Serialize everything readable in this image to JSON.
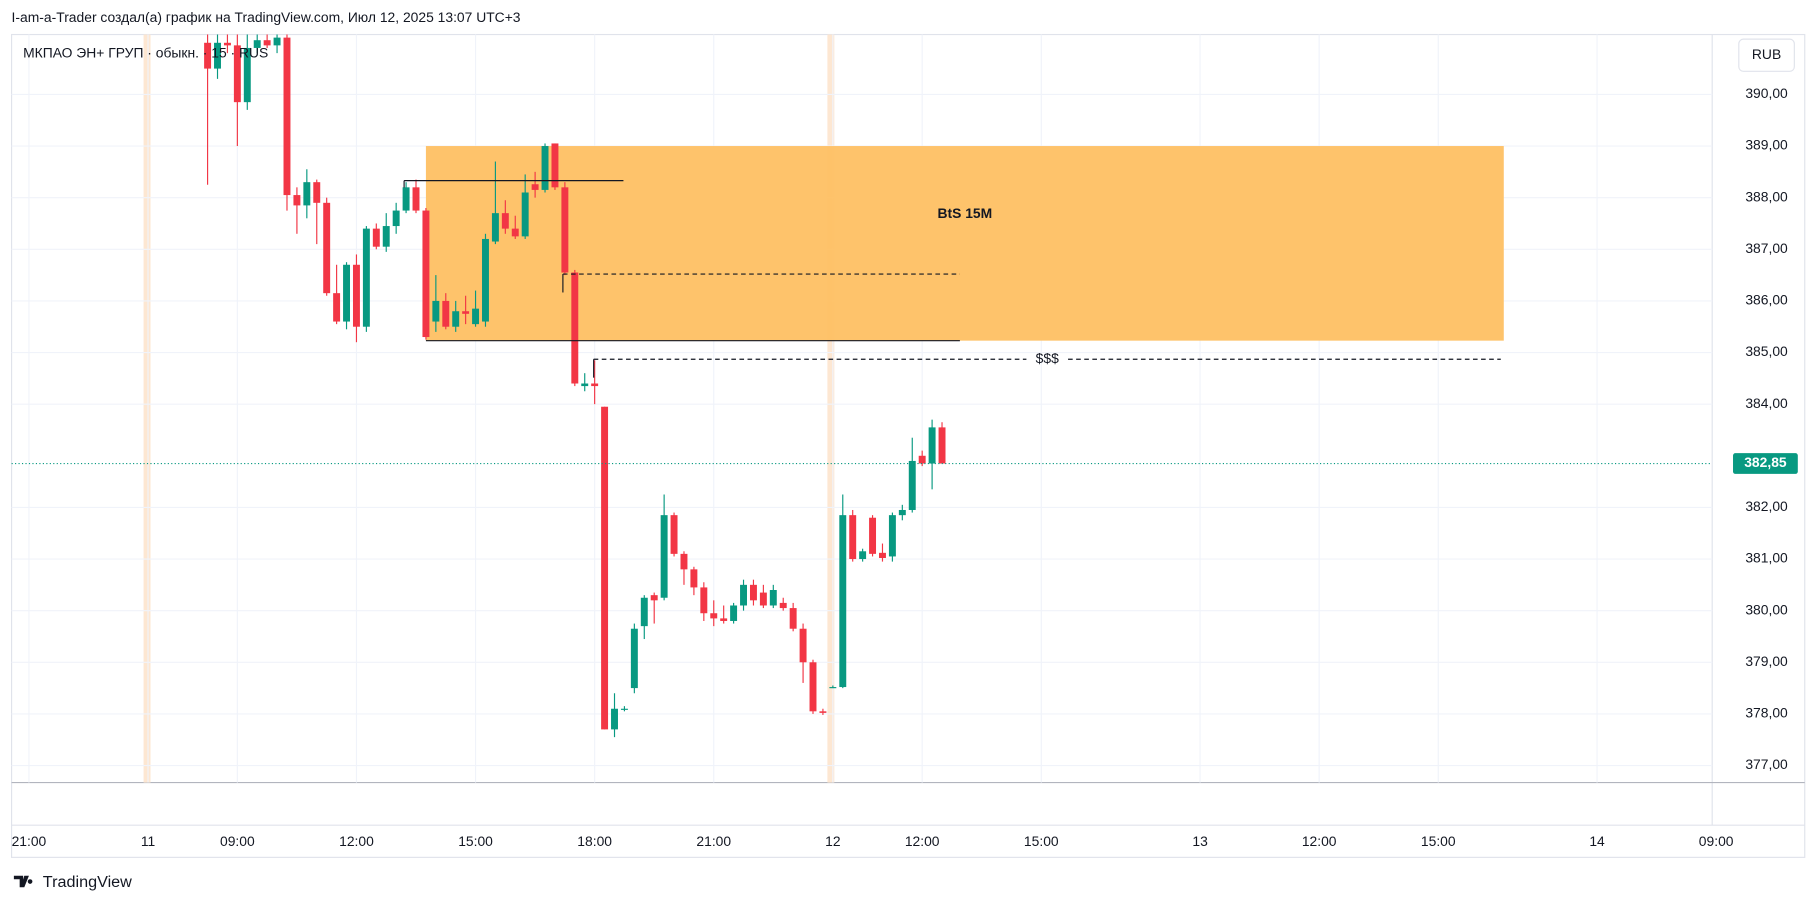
{
  "header": {
    "text": "I-am-a-Trader создал(а) график на TradingView.com, Июл 12, 2025 13:07 UTC+3"
  },
  "footer": {
    "brand": "TradingView"
  },
  "chart_data": {
    "type": "candlestick",
    "legend": "МКПАО ЭН+ ГРУП · обыкн. · 15 · RUS",
    "currency": "RUB",
    "up_color": "#089981",
    "down_color": "#f23645",
    "grid": true,
    "xlim": [
      -1.75,
      169.6
    ],
    "ylim": [
      376.67,
      391.16
    ],
    "xticks": [
      {
        "value": 0,
        "label": "21:00"
      },
      {
        "value": 12,
        "label": "11"
      },
      {
        "value": 21,
        "label": "09:00"
      },
      {
        "value": 33,
        "label": "12:00"
      },
      {
        "value": 45,
        "label": "15:00"
      },
      {
        "value": 57,
        "label": "18:00"
      },
      {
        "value": 69,
        "label": "21:00"
      },
      {
        "value": 81,
        "label": "12"
      },
      {
        "value": 90,
        "label": "12:00"
      },
      {
        "value": 102,
        "label": "15:00"
      },
      {
        "value": 118,
        "label": "13"
      },
      {
        "value": 130,
        "label": "12:00"
      },
      {
        "value": 142,
        "label": "15:00"
      },
      {
        "value": 158,
        "label": "14"
      },
      {
        "value": 170,
        "label": "09:00"
      }
    ],
    "yticks": [
      {
        "value": 377,
        "label": "377,00"
      },
      {
        "value": 378,
        "label": "378,00"
      },
      {
        "value": 379,
        "label": "379,00"
      },
      {
        "value": 380,
        "label": "380,00"
      },
      {
        "value": 381,
        "label": "381,00"
      },
      {
        "value": 382,
        "label": "382,00"
      },
      {
        "value": 384,
        "label": "384,00"
      },
      {
        "value": 385,
        "label": "385,00"
      },
      {
        "value": 386,
        "label": "386,00"
      },
      {
        "value": 387,
        "label": "387,00"
      },
      {
        "value": 388,
        "label": "388,00"
      },
      {
        "value": 389,
        "label": "389,00"
      },
      {
        "value": 390,
        "label": "390,00"
      }
    ],
    "session_breaks": [
      11.9,
      80.8
    ],
    "session_color": "#fde7d2",
    "last_price": {
      "value": 382.85,
      "label": "382,85"
    },
    "x": [
      18,
      19,
      20,
      21,
      22,
      23,
      24,
      25,
      26,
      27,
      28,
      29,
      30,
      31,
      32,
      33,
      34,
      35,
      36,
      37,
      38,
      39,
      40,
      41,
      42,
      43,
      44,
      45,
      46,
      47,
      48,
      49,
      50,
      51,
      52,
      53,
      54,
      55,
      56,
      57,
      58,
      59,
      60,
      61,
      62,
      63,
      64,
      65,
      66,
      67,
      68,
      69,
      70,
      71,
      72,
      73,
      74,
      75,
      76,
      77,
      78,
      79,
      80,
      81,
      82,
      83,
      84,
      85,
      86,
      87,
      88,
      89,
      90,
      91,
      92
    ],
    "open": [
      391.0,
      390.5,
      391.0,
      390.95,
      389.85,
      390.9,
      391.05,
      390.95,
      391.1,
      388.05,
      387.85,
      388.3,
      387.9,
      386.15,
      385.6,
      386.7,
      385.5,
      387.4,
      387.05,
      387.45,
      387.75,
      388.2,
      387.75,
      385.6,
      386.0,
      385.5,
      385.8,
      385.55,
      385.6,
      387.15,
      387.7,
      387.4,
      387.25,
      388.26,
      388.15,
      389.05,
      388.2,
      386.55,
      384.35,
      384.4,
      383.95,
      377.7,
      378.08,
      378.5,
      379.7,
      380.3,
      380.25,
      381.85,
      381.1,
      380.8,
      380.45,
      379.95,
      379.85,
      379.8,
      380.1,
      380.5,
      380.35,
      380.1,
      380.15,
      380.05,
      379.65,
      379.0,
      378.05,
      378.5,
      378.52,
      381.85,
      381.0,
      381.8,
      381.12,
      381.05,
      381.85,
      381.95,
      383.0,
      382.85,
      383.55
    ],
    "high": [
      391.16,
      391.16,
      391.16,
      391.16,
      391.16,
      391.16,
      391.16,
      391.16,
      391.16,
      388.2,
      388.55,
      388.35,
      388.0,
      386.7,
      386.75,
      386.9,
      387.45,
      387.5,
      387.7,
      387.9,
      388.3,
      388.35,
      387.8,
      386.5,
      386.15,
      386.0,
      386.1,
      386.2,
      387.3,
      388.7,
      387.95,
      387.65,
      388.45,
      388.5,
      389.05,
      389.05,
      388.3,
      386.6,
      384.6,
      384.85,
      383.95,
      378.4,
      378.15,
      379.75,
      380.3,
      380.35,
      382.25,
      381.9,
      381.15,
      380.85,
      380.55,
      380.2,
      380.1,
      380.15,
      380.6,
      380.6,
      380.5,
      380.5,
      380.25,
      380.15,
      379.75,
      379.05,
      378.1,
      378.55,
      382.25,
      381.95,
      381.2,
      381.85,
      381.3,
      381.9,
      382.05,
      383.35,
      383.1,
      383.7,
      383.65
    ],
    "low": [
      388.25,
      390.3,
      390.8,
      389.0,
      389.7,
      390.8,
      390.9,
      390.8,
      387.75,
      387.3,
      387.6,
      387.1,
      386.1,
      385.55,
      385.45,
      385.2,
      385.4,
      387.0,
      386.95,
      387.3,
      387.7,
      387.7,
      385.25,
      385.4,
      385.45,
      385.4,
      385.55,
      385.5,
      385.5,
      387.1,
      387.3,
      387.2,
      387.2,
      388.0,
      388.1,
      388.15,
      386.5,
      384.35,
      384.25,
      384.0,
      377.7,
      377.55,
      378.05,
      378.4,
      379.45,
      379.75,
      380.2,
      381.05,
      380.5,
      380.3,
      379.8,
      379.7,
      379.75,
      379.75,
      380.0,
      380.1,
      380.05,
      380.05,
      380.0,
      379.6,
      378.6,
      378.0,
      377.98,
      378.5,
      378.5,
      380.95,
      380.95,
      381.05,
      380.95,
      380.95,
      381.75,
      381.9,
      382.8,
      382.35,
      382.85
    ],
    "close": [
      390.5,
      391.0,
      390.95,
      389.85,
      390.9,
      391.05,
      390.95,
      391.1,
      388.05,
      387.85,
      388.3,
      387.9,
      386.15,
      385.6,
      386.7,
      385.5,
      387.4,
      387.05,
      387.45,
      387.75,
      388.2,
      387.75,
      385.3,
      386.0,
      385.5,
      385.8,
      385.75,
      385.85,
      387.2,
      387.7,
      387.4,
      387.25,
      388.1,
      388.15,
      389.0,
      388.2,
      386.55,
      384.4,
      384.4,
      384.35,
      377.7,
      378.1,
      378.1,
      379.65,
      380.25,
      380.2,
      381.85,
      381.1,
      380.8,
      380.45,
      379.95,
      379.85,
      379.8,
      380.1,
      380.5,
      380.2,
      380.1,
      380.4,
      380.05,
      379.65,
      379.0,
      378.05,
      378.02,
      378.52,
      381.85,
      381.0,
      381.15,
      381.1,
      381.02,
      381.85,
      381.95,
      382.9,
      382.85,
      383.55,
      382.85
    ],
    "zones": [
      {
        "x0": 40,
        "x1": 148.6,
        "y0": 385.23,
        "y1": 389.0,
        "color": "#fec063",
        "label": "BtS 15M"
      }
    ],
    "levels": [
      {
        "x0": 37.8,
        "x1": 59.9,
        "y": 388.33,
        "style": "solid"
      },
      {
        "x0": 40,
        "x1": 93.8,
        "y": 385.23,
        "style": "solid"
      },
      {
        "x0": 53.8,
        "x1": 93.8,
        "y": 386.52,
        "style": "dashed"
      },
      {
        "x0": 56.9,
        "x1": 148.3,
        "y": 384.87,
        "style": "dashed",
        "label": "$$$"
      }
    ]
  }
}
